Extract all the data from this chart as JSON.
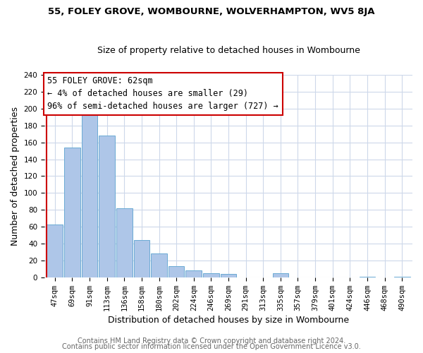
{
  "title": "55, FOLEY GROVE, WOMBOURNE, WOLVERHAMPTON, WV5 8JA",
  "subtitle": "Size of property relative to detached houses in Wombourne",
  "xlabel": "Distribution of detached houses by size in Wombourne",
  "ylabel": "Number of detached properties",
  "bar_labels": [
    "47sqm",
    "69sqm",
    "91sqm",
    "113sqm",
    "136sqm",
    "158sqm",
    "180sqm",
    "202sqm",
    "224sqm",
    "246sqm",
    "269sqm",
    "291sqm",
    "313sqm",
    "335sqm",
    "357sqm",
    "379sqm",
    "401sqm",
    "424sqm",
    "446sqm",
    "468sqm",
    "490sqm"
  ],
  "bar_values": [
    63,
    154,
    192,
    168,
    82,
    44,
    28,
    13,
    8,
    5,
    4,
    0,
    0,
    5,
    0,
    0,
    0,
    0,
    1,
    0,
    1
  ],
  "bar_color": "#aec6e8",
  "bar_edge_color": "#6aaad4",
  "highlight_color": "#cc0000",
  "annotation_title": "55 FOLEY GROVE: 62sqm",
  "annotation_line1": "← 4% of detached houses are smaller (29)",
  "annotation_line2": "96% of semi-detached houses are larger (727) →",
  "annotation_box_color": "#ffffff",
  "annotation_box_edge": "#cc0000",
  "ylim": [
    0,
    240
  ],
  "yticks": [
    0,
    20,
    40,
    60,
    80,
    100,
    120,
    140,
    160,
    180,
    200,
    220,
    240
  ],
  "footer1": "Contains HM Land Registry data © Crown copyright and database right 2024.",
  "footer2": "Contains public sector information licensed under the Open Government Licence v3.0.",
  "bg_color": "#ffffff",
  "grid_color": "#cdd8ea",
  "title_fontsize": 9.5,
  "subtitle_fontsize": 9,
  "axis_label_fontsize": 9,
  "tick_fontsize": 7.5,
  "footer_fontsize": 7,
  "annotation_fontsize": 8.5
}
